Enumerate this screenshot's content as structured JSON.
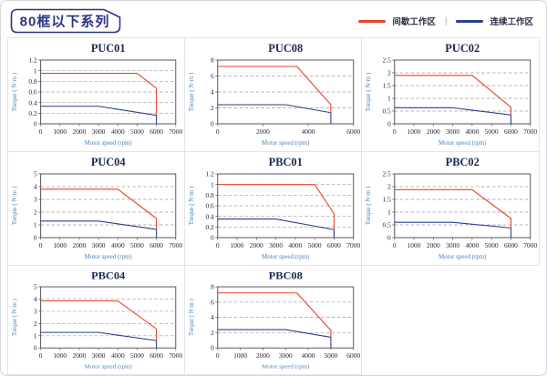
{
  "page": {
    "badge_label": "80框以下系列"
  },
  "header": {
    "legend_items": [
      {
        "key": "intermittent",
        "label": "间歇工作区",
        "color": "#e8432a"
      },
      {
        "key": "continuous",
        "label": "连续工作区",
        "color": "#2b3f8e"
      }
    ],
    "legend_separator": "|"
  },
  "colors": {
    "intermittent_red": "#e8432a",
    "continuous_navy": "#2b3f8e",
    "axis_label_blue": "#4f81bd",
    "title_navy": "#1c2750",
    "badge_navy": "#2b3580"
  },
  "chart_data": [
    {
      "type": "line",
      "title": "PUC01",
      "xlabel": "Motor speed (rpm)",
      "ylabel": "Torque ( N·m )",
      "xlim": [
        0,
        7000
      ],
      "xticks": [
        0,
        1000,
        2000,
        3000,
        4000,
        5000,
        6000,
        7000
      ],
      "ylim": [
        0,
        1.2
      ],
      "yticks": [
        0,
        0.2,
        0.4,
        0.6,
        0.8,
        1,
        1.2
      ],
      "grid": "horizontal-dashed",
      "legend_position": "none",
      "series": [
        {
          "key": "intermittent",
          "name": "间歇工作区",
          "color": "#e8432a",
          "points": [
            [
              0,
              0.95
            ],
            [
              5000,
              0.95
            ],
            [
              6000,
              0.67
            ],
            [
              6000,
              0.16
            ]
          ]
        },
        {
          "key": "continuous",
          "name": "连续工作区",
          "color": "#2b3f8e",
          "points": [
            [
              0,
              0.33
            ],
            [
              3000,
              0.33
            ],
            [
              6000,
              0.16
            ],
            [
              6000,
              0
            ]
          ]
        }
      ]
    },
    {
      "type": "line",
      "title": "PUC08",
      "xlabel": "Motor speed (rpm)",
      "ylabel": "Torque ( N·m )",
      "xlim": [
        0,
        6000
      ],
      "xticks": [
        0,
        2000,
        4000,
        6000
      ],
      "ylim": [
        0,
        8
      ],
      "yticks": [
        0,
        2,
        4,
        6,
        8
      ],
      "grid": "horizontal-dashed",
      "legend_position": "none",
      "series": [
        {
          "key": "intermittent",
          "name": "间歇工作区",
          "color": "#e8432a",
          "points": [
            [
              0,
              7.2
            ],
            [
              3500,
              7.2
            ],
            [
              5000,
              2.4
            ],
            [
              5000,
              1.4
            ]
          ]
        },
        {
          "key": "continuous",
          "name": "连续工作区",
          "color": "#2b3f8e",
          "points": [
            [
              0,
              2.4
            ],
            [
              3000,
              2.4
            ],
            [
              5000,
              1.4
            ],
            [
              5000,
              0
            ]
          ]
        }
      ]
    },
    {
      "type": "line",
      "title": "PUC02",
      "xlabel": "Motor speed (rpm)",
      "ylabel": "Torque ( N·m )",
      "xlim": [
        0,
        7000
      ],
      "xticks": [
        0,
        1000,
        2000,
        3000,
        4000,
        5000,
        6000,
        7000
      ],
      "ylim": [
        0,
        2.5
      ],
      "yticks": [
        0,
        0.5,
        1,
        1.5,
        2,
        2.5
      ],
      "grid": "horizontal-dashed",
      "legend_position": "none",
      "series": [
        {
          "key": "intermittent",
          "name": "间歇工作区",
          "color": "#e8432a",
          "points": [
            [
              0,
              1.9
            ],
            [
              4000,
              1.9
            ],
            [
              6000,
              0.65
            ],
            [
              6000,
              0.35
            ]
          ]
        },
        {
          "key": "continuous",
          "name": "连续工作区",
          "color": "#2b3f8e",
          "points": [
            [
              0,
              0.63
            ],
            [
              3000,
              0.63
            ],
            [
              6000,
              0.35
            ],
            [
              6000,
              0
            ]
          ]
        }
      ]
    },
    {
      "type": "line",
      "title": "PUC04",
      "xlabel": "Motor speed (rpm)",
      "ylabel": "Torque ( N·m )",
      "xlim": [
        0,
        7000
      ],
      "xticks": [
        0,
        1000,
        2000,
        3000,
        4000,
        5000,
        6000,
        7000
      ],
      "ylim": [
        0,
        5
      ],
      "yticks": [
        0,
        1,
        2,
        3,
        4,
        5
      ],
      "grid": "horizontal-dashed",
      "legend_position": "none",
      "series": [
        {
          "key": "intermittent",
          "name": "间歇工作区",
          "color": "#e8432a",
          "points": [
            [
              0,
              3.8
            ],
            [
              4000,
              3.8
            ],
            [
              6000,
              1.5
            ],
            [
              6000,
              0.65
            ]
          ]
        },
        {
          "key": "continuous",
          "name": "连续工作区",
          "color": "#2b3f8e",
          "points": [
            [
              0,
              1.3
            ],
            [
              3000,
              1.3
            ],
            [
              6000,
              0.65
            ],
            [
              6000,
              0
            ]
          ]
        }
      ]
    },
    {
      "type": "line",
      "title": "PBC01",
      "xlabel": "Motor speed (rpm)",
      "ylabel": "Torque ( N·m )",
      "xlim": [
        0,
        7000
      ],
      "xticks": [
        0,
        1000,
        2000,
        3000,
        4000,
        5000,
        6000,
        7000
      ],
      "ylim": [
        0,
        1.2
      ],
      "yticks": [
        0,
        0.2,
        0.4,
        0.6,
        0.8,
        1,
        1.2
      ],
      "grid": "horizontal-dashed",
      "legend_position": "none",
      "series": [
        {
          "key": "intermittent",
          "name": "间歇工作区",
          "color": "#e8432a",
          "points": [
            [
              0,
              1.0
            ],
            [
              5000,
              1.0
            ],
            [
              6000,
              0.45
            ],
            [
              6000,
              0.15
            ]
          ]
        },
        {
          "key": "continuous",
          "name": "连续工作区",
          "color": "#2b3f8e",
          "points": [
            [
              0,
              0.35
            ],
            [
              3000,
              0.35
            ],
            [
              6000,
              0.15
            ],
            [
              6000,
              0
            ]
          ]
        }
      ]
    },
    {
      "type": "line",
      "title": "PBC02",
      "xlabel": "Motor speed (rpm)",
      "ylabel": "Torque ( N·m )",
      "xlim": [
        0,
        7000
      ],
      "xticks": [
        0,
        1000,
        2000,
        3000,
        4000,
        5000,
        6000,
        7000
      ],
      "ylim": [
        0,
        2.5
      ],
      "yticks": [
        0,
        0.5,
        1,
        1.5,
        2,
        2.5
      ],
      "grid": "horizontal-dashed",
      "legend_position": "none",
      "series": [
        {
          "key": "intermittent",
          "name": "间歇工作区",
          "color": "#e8432a",
          "points": [
            [
              0,
              1.88
            ],
            [
              4000,
              1.88
            ],
            [
              6000,
              0.75
            ],
            [
              6000,
              0.38
            ]
          ]
        },
        {
          "key": "continuous",
          "name": "连续工作区",
          "color": "#2b3f8e",
          "points": [
            [
              0,
              0.6
            ],
            [
              3000,
              0.6
            ],
            [
              6000,
              0.38
            ],
            [
              6000,
              0
            ]
          ]
        }
      ]
    },
    {
      "type": "line",
      "title": "PBC04",
      "xlabel": "Motor speed (rpm)",
      "ylabel": "Torque ( N·m )",
      "xlim": [
        0,
        7000
      ],
      "xticks": [
        0,
        1000,
        2000,
        3000,
        4000,
        5000,
        6000,
        7000
      ],
      "ylim": [
        0,
        5
      ],
      "yticks": [
        0,
        1,
        2,
        3,
        4,
        5
      ],
      "grid": "horizontal-dashed",
      "legend_position": "none",
      "series": [
        {
          "key": "intermittent",
          "name": "间歇工作区",
          "color": "#e8432a",
          "points": [
            [
              0,
              3.85
            ],
            [
              4000,
              3.85
            ],
            [
              6000,
              1.55
            ],
            [
              6000,
              0.6
            ]
          ]
        },
        {
          "key": "continuous",
          "name": "连续工作区",
          "color": "#2b3f8e",
          "points": [
            [
              0,
              1.27
            ],
            [
              3000,
              1.27
            ],
            [
              6000,
              0.6
            ],
            [
              6000,
              0
            ]
          ]
        }
      ]
    },
    {
      "type": "line",
      "title": "PBC08",
      "xlabel": "Motor speed (rpm)",
      "ylabel": "Torque ( N·m )",
      "xlim": [
        0,
        6000
      ],
      "xticks": [
        0,
        1000,
        2000,
        3000,
        4000,
        5000,
        6000
      ],
      "ylim": [
        0,
        8
      ],
      "yticks": [
        0,
        2,
        4,
        6,
        8
      ],
      "grid": "horizontal-dashed",
      "legend_position": "none",
      "series": [
        {
          "key": "intermittent",
          "name": "间歇工作区",
          "color": "#e8432a",
          "points": [
            [
              0,
              7.2
            ],
            [
              3500,
              7.2
            ],
            [
              5000,
              2.3
            ],
            [
              5000,
              1.4
            ]
          ]
        },
        {
          "key": "continuous",
          "name": "连续工作区",
          "color": "#2b3f8e",
          "points": [
            [
              0,
              2.4
            ],
            [
              3000,
              2.4
            ],
            [
              5000,
              1.4
            ],
            [
              5000,
              0
            ]
          ]
        }
      ]
    }
  ]
}
